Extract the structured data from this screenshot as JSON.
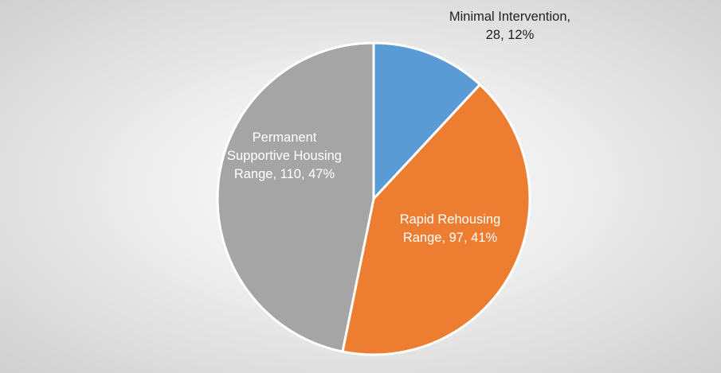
{
  "chart_data": {
    "type": "pie",
    "categories": [
      "Minimal Intervention",
      "Rapid Rehousing Range",
      "Permanent Supportive Housing Range"
    ],
    "values": [
      28,
      97,
      110
    ],
    "value_labels": [
      "Minimal Intervention, 28, 12%",
      "Rapid Rehousing Range, 97, 41%",
      "Permanent Supportive Housing Range, 110, 47%"
    ],
    "colors": [
      "#5b9bd5",
      "#ed7d31",
      "#a5a5a5"
    ]
  }
}
